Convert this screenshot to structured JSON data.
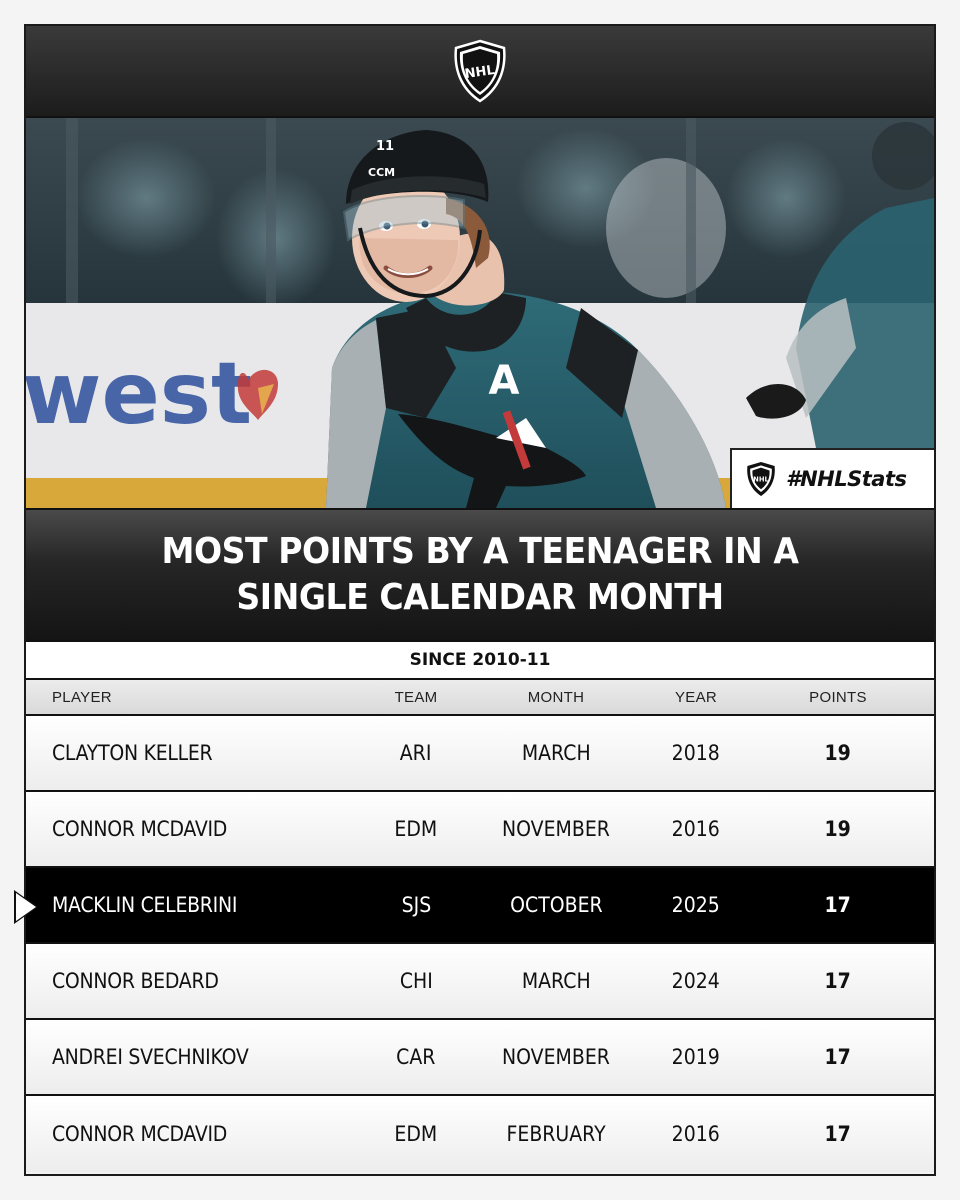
{
  "brand": {
    "logo_text": "NHL",
    "hashtag": "#NHLStats"
  },
  "photo": {
    "sponsor_board_text": "west",
    "jersey_letter": "A",
    "helmet_text": "CCM"
  },
  "title": "MOST POINTS BY A TEENAGER IN A SINGLE CALENDAR MONTH",
  "subtitle": "SINCE 2010-11",
  "table": {
    "headers": {
      "player": "PLAYER",
      "team": "TEAM",
      "month": "MONTH",
      "year": "YEAR",
      "points": "POINTS"
    },
    "rows": [
      {
        "player": "CLAYTON KELLER",
        "team": "ARI",
        "month": "MARCH",
        "year": "2018",
        "points": "19"
      },
      {
        "player": "CONNOR MCDAVID",
        "team": "EDM",
        "month": "NOVEMBER",
        "year": "2016",
        "points": "19"
      },
      {
        "player": "MACKLIN CELEBRINI",
        "team": "SJS",
        "month": "OCTOBER",
        "year": "2025",
        "points": "17",
        "highlight": true
      },
      {
        "player": "CONNOR BEDARD",
        "team": "CHI",
        "month": "MARCH",
        "year": "2024",
        "points": "17"
      },
      {
        "player": "ANDREI SVECHNIKOV",
        "team": "CAR",
        "month": "NOVEMBER",
        "year": "2019",
        "points": "17"
      },
      {
        "player": "CONNOR MCDAVID",
        "team": "EDM",
        "month": "FEBRUARY",
        "year": "2016",
        "points": "17"
      }
    ]
  },
  "colors": {
    "highlight_row": "#000000",
    "header_bar": "#262626",
    "teal": "#2f6b78"
  }
}
